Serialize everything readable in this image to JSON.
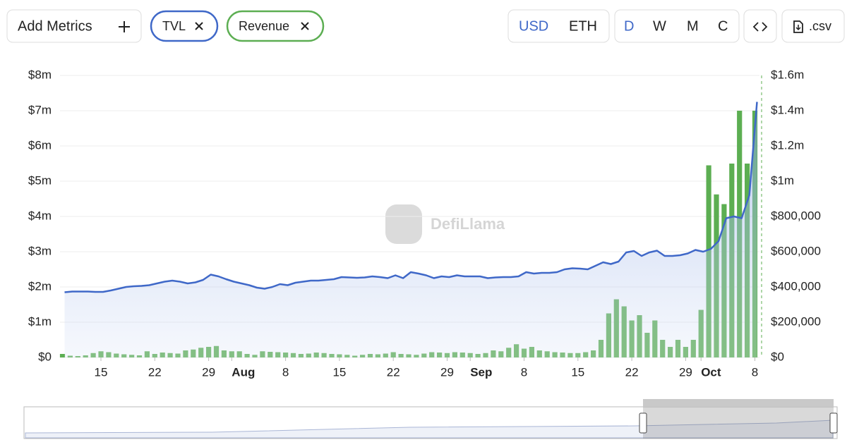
{
  "controls": {
    "add_metrics": "Add Metrics",
    "currencies": [
      "USD",
      "ETH"
    ],
    "periods": [
      "D",
      "W",
      "M",
      "C"
    ],
    "csv": ".csv"
  },
  "watermark": "DefiLlama",
  "chart_data": {
    "type": "bar-line",
    "x": [
      "Jul 10",
      "Jul 11",
      "Jul 12",
      "Jul 13",
      "Jul 14",
      "Jul 15",
      "Jul 16",
      "Jul 17",
      "Jul 18",
      "Jul 19",
      "Jul 20",
      "Jul 21",
      "Jul 22",
      "Jul 23",
      "Jul 24",
      "Jul 25",
      "Jul 26",
      "Jul 27",
      "Jul 28",
      "Jul 29",
      "Jul 30",
      "Jul 31",
      "Aug 1",
      "Aug 2",
      "Aug 3",
      "Aug 4",
      "Aug 5",
      "Aug 6",
      "Aug 7",
      "Aug 8",
      "Aug 9",
      "Aug 10",
      "Aug 11",
      "Aug 12",
      "Aug 13",
      "Aug 14",
      "Aug 15",
      "Aug 16",
      "Aug 17",
      "Aug 18",
      "Aug 19",
      "Aug 20",
      "Aug 21",
      "Aug 22",
      "Aug 23",
      "Aug 24",
      "Aug 25",
      "Aug 26",
      "Aug 27",
      "Aug 28",
      "Aug 29",
      "Aug 30",
      "Aug 31",
      "Sep 1",
      "Sep 2",
      "Sep 3",
      "Sep 4",
      "Sep 5",
      "Sep 6",
      "Sep 7",
      "Sep 8",
      "Sep 9",
      "Sep 10",
      "Sep 11",
      "Sep 12",
      "Sep 13",
      "Sep 14",
      "Sep 15",
      "Sep 16",
      "Sep 17",
      "Sep 18",
      "Sep 19",
      "Sep 20",
      "Sep 21",
      "Sep 22",
      "Sep 23",
      "Sep 24",
      "Sep 25",
      "Sep 26",
      "Sep 27",
      "Sep 28",
      "Sep 29",
      "Sep 30",
      "Oct 1",
      "Oct 2",
      "Oct 3",
      "Oct 4",
      "Oct 5",
      "Oct 6",
      "Oct 7",
      "Oct 8"
    ],
    "xticks": [
      {
        "value": "Jul 15",
        "label": "15"
      },
      {
        "value": "Jul 22",
        "label": "22"
      },
      {
        "value": "Jul 29",
        "label": "29"
      },
      {
        "value": "Aug 1",
        "label": "Aug"
      },
      {
        "value": "Aug 8",
        "label": "8"
      },
      {
        "value": "Aug 15",
        "label": "15"
      },
      {
        "value": "Aug 22",
        "label": "22"
      },
      {
        "value": "Aug 29",
        "label": "29"
      },
      {
        "value": "Sep 1",
        "label": "Sep"
      },
      {
        "value": "Sep 8",
        "label": "8"
      },
      {
        "value": "Sep 15",
        "label": "15"
      },
      {
        "value": "Sep 22",
        "label": "22"
      },
      {
        "value": "Sep 29",
        "label": "29"
      },
      {
        "value": "Oct 1",
        "label": "Oct"
      },
      {
        "value": "Oct 8",
        "label": "8"
      }
    ],
    "ylim": [
      0,
      8000000
    ],
    "yticks": [
      {
        "value": 0,
        "label": "$0"
      },
      {
        "value": 1000000,
        "label": "$1m"
      },
      {
        "value": 2000000,
        "label": "$2m"
      },
      {
        "value": 3000000,
        "label": "$3m"
      },
      {
        "value": 4000000,
        "label": "$4m"
      },
      {
        "value": 5000000,
        "label": "$5m"
      },
      {
        "value": 6000000,
        "label": "$6m"
      },
      {
        "value": 7000000,
        "label": "$7m"
      },
      {
        "value": 8000000,
        "label": "$8m"
      }
    ],
    "y2lim": [
      0,
      1600000
    ],
    "y2ticks": [
      {
        "value": 0,
        "label": "$0"
      },
      {
        "value": 200000,
        "label": "$200,000"
      },
      {
        "value": 400000,
        "label": "$400,000"
      },
      {
        "value": 600000,
        "label": "$600,000"
      },
      {
        "value": 800000,
        "label": "$800,000"
      },
      {
        "value": 1000000,
        "label": "$1m"
      },
      {
        "value": 1200000,
        "label": "$1.2m"
      },
      {
        "value": 1400000,
        "label": "$1.4m"
      },
      {
        "value": 1600000,
        "label": "$1.6m"
      }
    ],
    "grid": true,
    "series": [
      {
        "name": "TVL",
        "type": "line",
        "color": "#3f68c8",
        "values": [
          1850000,
          1870000,
          1870000,
          1870000,
          1860000,
          1860000,
          1900000,
          1950000,
          2000000,
          2020000,
          2030000,
          2050000,
          2100000,
          2150000,
          2180000,
          2150000,
          2100000,
          2130000,
          2200000,
          2350000,
          2300000,
          2220000,
          2150000,
          2100000,
          2050000,
          1980000,
          1950000,
          2000000,
          2080000,
          2050000,
          2120000,
          2150000,
          2180000,
          2180000,
          2200000,
          2220000,
          2280000,
          2270000,
          2260000,
          2270000,
          2300000,
          2280000,
          2250000,
          2330000,
          2250000,
          2420000,
          2380000,
          2330000,
          2250000,
          2300000,
          2280000,
          2330000,
          2300000,
          2300000,
          2300000,
          2250000,
          2270000,
          2280000,
          2280000,
          2300000,
          2420000,
          2380000,
          2400000,
          2400000,
          2420000,
          2500000,
          2530000,
          2520000,
          2500000,
          2600000,
          2700000,
          2650000,
          2720000,
          2980000,
          3020000,
          2880000,
          2980000,
          3030000,
          2880000,
          2880000,
          2900000,
          2950000,
          3050000,
          3000000,
          3080000,
          3300000,
          3950000,
          4000000,
          3950000,
          4600000,
          7250000
        ]
      },
      {
        "name": "Revenue",
        "type": "bar",
        "axis": "y2",
        "color": "#5cae52",
        "values": [
          20000,
          10000,
          8000,
          12000,
          25000,
          35000,
          30000,
          22000,
          18000,
          15000,
          12000,
          35000,
          20000,
          28000,
          25000,
          22000,
          40000,
          45000,
          55000,
          60000,
          65000,
          40000,
          35000,
          35000,
          20000,
          15000,
          35000,
          32000,
          30000,
          28000,
          25000,
          20000,
          22000,
          28000,
          25000,
          20000,
          18000,
          15000,
          10000,
          15000,
          20000,
          18000,
          22000,
          30000,
          20000,
          18000,
          15000,
          22000,
          30000,
          28000,
          25000,
          30000,
          28000,
          25000,
          20000,
          25000,
          40000,
          35000,
          55000,
          75000,
          50000,
          60000,
          40000,
          35000,
          30000,
          28000,
          25000,
          25000,
          30000,
          40000,
          100000,
          250000,
          330000,
          290000,
          210000,
          240000,
          140000,
          210000,
          100000,
          60000,
          100000,
          60000,
          100000,
          270000,
          1090000,
          925000,
          870000,
          1100000,
          1400000,
          1100000,
          1400000
        ]
      }
    ]
  }
}
